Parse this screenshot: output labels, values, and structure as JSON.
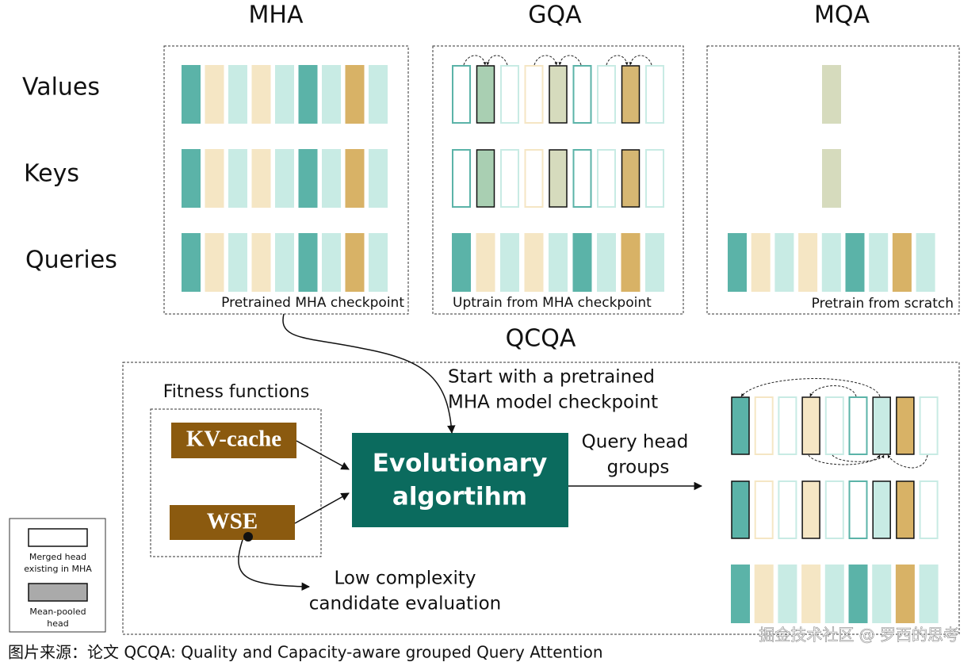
{
  "titles": {
    "mha": "MHA",
    "gqa": "GQA",
    "mqa": "MQA",
    "qcqa": "QCQA"
  },
  "rows": [
    "Values",
    "Keys",
    "Queries"
  ],
  "panels": {
    "mha": "Pretrained MHA checkpoint",
    "gqa": "Uptrain from MHA checkpoint",
    "mqa": "Pretrain from scratch"
  },
  "fitness": {
    "title": "Fitness functions",
    "kv": "KV-cache",
    "wse": "WSE"
  },
  "algorithm": [
    "Evolutionary",
    "algortihm"
  ],
  "start_note": [
    "Start with a pretrained",
    "MHA model checkpoint"
  ],
  "output_note": [
    "Query head",
    "groups"
  ],
  "eval_note": [
    "Low complexity",
    "candidate evaluation"
  ],
  "legend": {
    "merged": [
      "Merged head",
      "existing in MHA"
    ],
    "mean": [
      "Mean-pooled",
      "head"
    ]
  },
  "caption": "图片来源：论文 QCQA: Quality and Capacity-aware grouped Query Attention",
  "watermark": "掘金技术社区 @ 罗西的思考"
}
